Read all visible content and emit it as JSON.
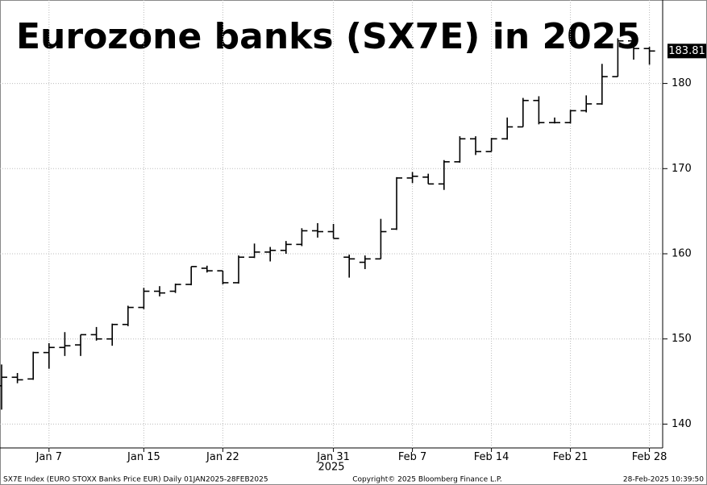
{
  "chart_data": {
    "type": "ohlc",
    "title": "Eurozone banks (SX7E) in 2025",
    "categories": [
      null,
      null,
      null,
      "Jan 7",
      null,
      null,
      null,
      null,
      null,
      "Jan 15",
      null,
      null,
      null,
      null,
      "Jan 22",
      null,
      null,
      null,
      null,
      null,
      null,
      "Jan 31",
      null,
      null,
      null,
      null,
      "Feb 7",
      null,
      null,
      null,
      null,
      "Feb 14",
      null,
      null,
      null,
      null,
      "Feb 21",
      null,
      null,
      null,
      null,
      "Feb 28"
    ],
    "x_sublabel": "2025",
    "open": [
      144.5,
      145.5,
      145.3,
      148.4,
      149.0,
      149.3,
      150.5,
      150.0,
      151.7,
      153.7,
      155.6,
      155.6,
      156.4,
      158.3,
      158.0,
      156.6,
      159.6,
      160.2,
      160.4,
      161.1,
      162.7,
      162.6,
      159.6,
      159.0,
      159.4,
      162.9,
      168.9,
      169.0,
      168.2,
      170.8,
      173.5,
      172.0,
      173.5,
      174.9,
      178.0,
      175.4,
      175.4,
      176.8,
      177.6,
      180.8,
      185.0,
      184.1
    ],
    "high": [
      147.0,
      146.0,
      148.5,
      149.5,
      150.8,
      150.5,
      151.4,
      151.8,
      153.9,
      156.0,
      156.2,
      156.5,
      158.5,
      158.6,
      158.0,
      159.8,
      161.2,
      160.8,
      161.5,
      163.0,
      163.6,
      163.5,
      159.9,
      159.8,
      164.1,
      169.0,
      169.6,
      169.4,
      171.0,
      173.8,
      173.8,
      173.6,
      176.0,
      178.3,
      178.5,
      176.0,
      176.9,
      178.6,
      182.3,
      185.3,
      185.5,
      184.3
    ],
    "low": [
      141.7,
      144.8,
      145.2,
      146.5,
      148.0,
      148.0,
      149.8,
      149.2,
      151.5,
      153.5,
      155.0,
      155.4,
      156.3,
      157.8,
      156.4,
      156.5,
      159.5,
      159.1,
      160.0,
      160.9,
      161.9,
      161.8,
      157.2,
      158.2,
      159.4,
      162.8,
      168.3,
      168.2,
      167.5,
      170.7,
      171.6,
      172.0,
      173.4,
      174.9,
      175.2,
      175.3,
      175.3,
      176.6,
      177.5,
      180.8,
      182.8,
      182.2
    ],
    "close": [
      145.5,
      145.2,
      148.4,
      149.0,
      149.2,
      150.5,
      150.0,
      151.7,
      153.7,
      155.6,
      155.4,
      156.4,
      158.5,
      158.0,
      156.6,
      159.6,
      160.2,
      160.4,
      161.1,
      162.7,
      162.6,
      161.8,
      159.4,
      159.4,
      162.6,
      168.9,
      169.1,
      168.2,
      170.8,
      173.5,
      172.0,
      173.5,
      174.9,
      178.0,
      175.4,
      175.4,
      176.8,
      177.6,
      180.8,
      185.0,
      184.1,
      183.81
    ],
    "color": "#000000",
    "ylim": [
      137.2,
      189.8
    ],
    "yticks": [
      140,
      150,
      160,
      170,
      180
    ],
    "grid": true,
    "footer": {
      "source": "SX7E Index (EURO STOXX Banks Price EUR)  Daily 01JAN2025-28FEB2025",
      "copyright": "Copyright© 2025 Bloomberg Finance L.P.",
      "timestamp": "28-Feb-2025 10:39:50"
    }
  }
}
